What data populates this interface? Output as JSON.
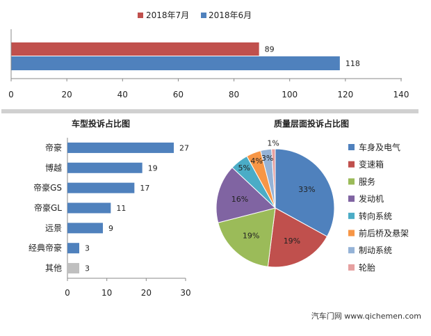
{
  "chart_data": [
    {
      "type": "bar",
      "orientation": "horizontal",
      "series": [
        {
          "name": "2018年7月",
          "values": [
            89
          ],
          "color": "#c0504d"
        },
        {
          "name": "2018年6月",
          "values": [
            118
          ],
          "color": "#4f81bd"
        }
      ],
      "xlim": [
        0,
        140
      ],
      "xticks": [
        "0",
        "20",
        "40",
        "60",
        "80",
        "100",
        "120",
        "140"
      ],
      "legend": "top"
    },
    {
      "type": "bar",
      "orientation": "horizontal",
      "title": "车型投诉占比图",
      "categories": [
        "帝豪",
        "博越",
        "帝豪GS",
        "帝豪GL",
        "远景",
        "经典帝豪",
        "其他"
      ],
      "values": [
        27,
        19,
        17,
        11,
        9,
        3,
        3
      ],
      "colors": [
        "#4f81bd",
        "#4f81bd",
        "#4f81bd",
        "#4f81bd",
        "#4f81bd",
        "#4f81bd",
        "#bfbfbf"
      ],
      "xlim": [
        0,
        30
      ],
      "xticks": [
        "0",
        "10",
        "20",
        "30"
      ]
    },
    {
      "type": "pie",
      "title": "质量层面投诉占比图",
      "categories": [
        "车身及电气",
        "变速箱",
        "服务",
        "发动机",
        "转向系统",
        "前后桥及悬架",
        "制动系统",
        "轮胎"
      ],
      "values": [
        33,
        19,
        19,
        16,
        5,
        4,
        3,
        1
      ],
      "labels": [
        "33%",
        "19%",
        "19%",
        "16%",
        "5%",
        "4%",
        "3%",
        "1%"
      ],
      "colors": [
        "#4f81bd",
        "#c0504d",
        "#9bbb59",
        "#8064a2",
        "#4bacc6",
        "#f79646",
        "#95b3d7",
        "#e6a0a0"
      ],
      "legend": "right"
    }
  ],
  "watermark": "汽车门网 www.qichemen.com"
}
